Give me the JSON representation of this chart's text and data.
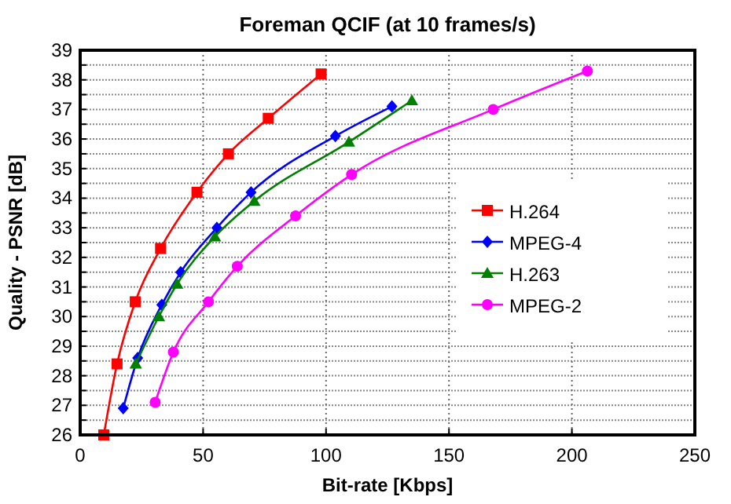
{
  "chart_data": {
    "type": "line",
    "title": "Foreman QCIF (at 10 frames/s)",
    "xlabel": "Bit-rate [Kbps]",
    "ylabel": "Quality - PSNR [dB]",
    "xlim": [
      0,
      250
    ],
    "xticks": [
      0,
      50,
      100,
      150,
      200,
      250
    ],
    "ylim": [
      26,
      39
    ],
    "yticks": [
      26,
      {
        "value": 26.5,
        "label": null
      },
      27,
      {
        "value": 27.5,
        "label": null
      },
      28,
      {
        "value": 28.5,
        "label": null
      },
      29,
      {
        "value": 29.5,
        "label": null
      },
      30,
      {
        "value": 30.5,
        "label": null
      },
      31,
      {
        "value": 31.5,
        "label": null
      },
      32,
      {
        "value": 32.5,
        "label": null
      },
      33,
      {
        "value": 33.5,
        "label": null
      },
      34,
      {
        "value": 34.5,
        "label": null
      },
      35,
      {
        "value": 35.5,
        "label": null
      },
      36,
      {
        "value": 36.5,
        "label": null
      },
      37,
      {
        "value": 37.5,
        "label": null
      },
      38,
      {
        "value": 38.5,
        "label": null
      },
      39
    ],
    "grid": true,
    "legend": "right",
    "line_style": "solid",
    "series": [
      {
        "name": "H.264",
        "color": "#ff0000",
        "marker": "square",
        "x": [
          9.6,
          15,
          22.4,
          32.7,
          47.5,
          60.3,
          76.5,
          98
        ],
        "values": [
          26.0,
          28.4,
          30.5,
          32.3,
          34.2,
          35.5,
          36.7,
          38.2
        ]
      },
      {
        "name": "MPEG-4",
        "color": "#0000ff",
        "marker": "diamond",
        "x": [
          17.5,
          23.4,
          33.2,
          40.9,
          55.6,
          69.5,
          103.8,
          126.8
        ],
        "values": [
          26.9,
          28.6,
          30.4,
          31.5,
          33.0,
          34.2,
          36.1,
          37.1
        ]
      },
      {
        "name": "H.263",
        "color": "#008000",
        "marker": "triangle",
        "x": [
          22.6,
          32,
          39.4,
          54.8,
          70.8,
          109.3,
          134.9
        ],
        "values": [
          28.4,
          30.0,
          31.1,
          32.7,
          33.9,
          35.9,
          37.3
        ]
      },
      {
        "name": "MPEG-2",
        "color": "#ff00ff",
        "marker": "circle",
        "x": [
          30.5,
          37.9,
          52.2,
          63.9,
          87.6,
          110.4,
          168,
          206.3
        ],
        "values": [
          27.1,
          28.8,
          30.5,
          31.7,
          33.4,
          34.8,
          37.0,
          38.3
        ]
      }
    ]
  }
}
